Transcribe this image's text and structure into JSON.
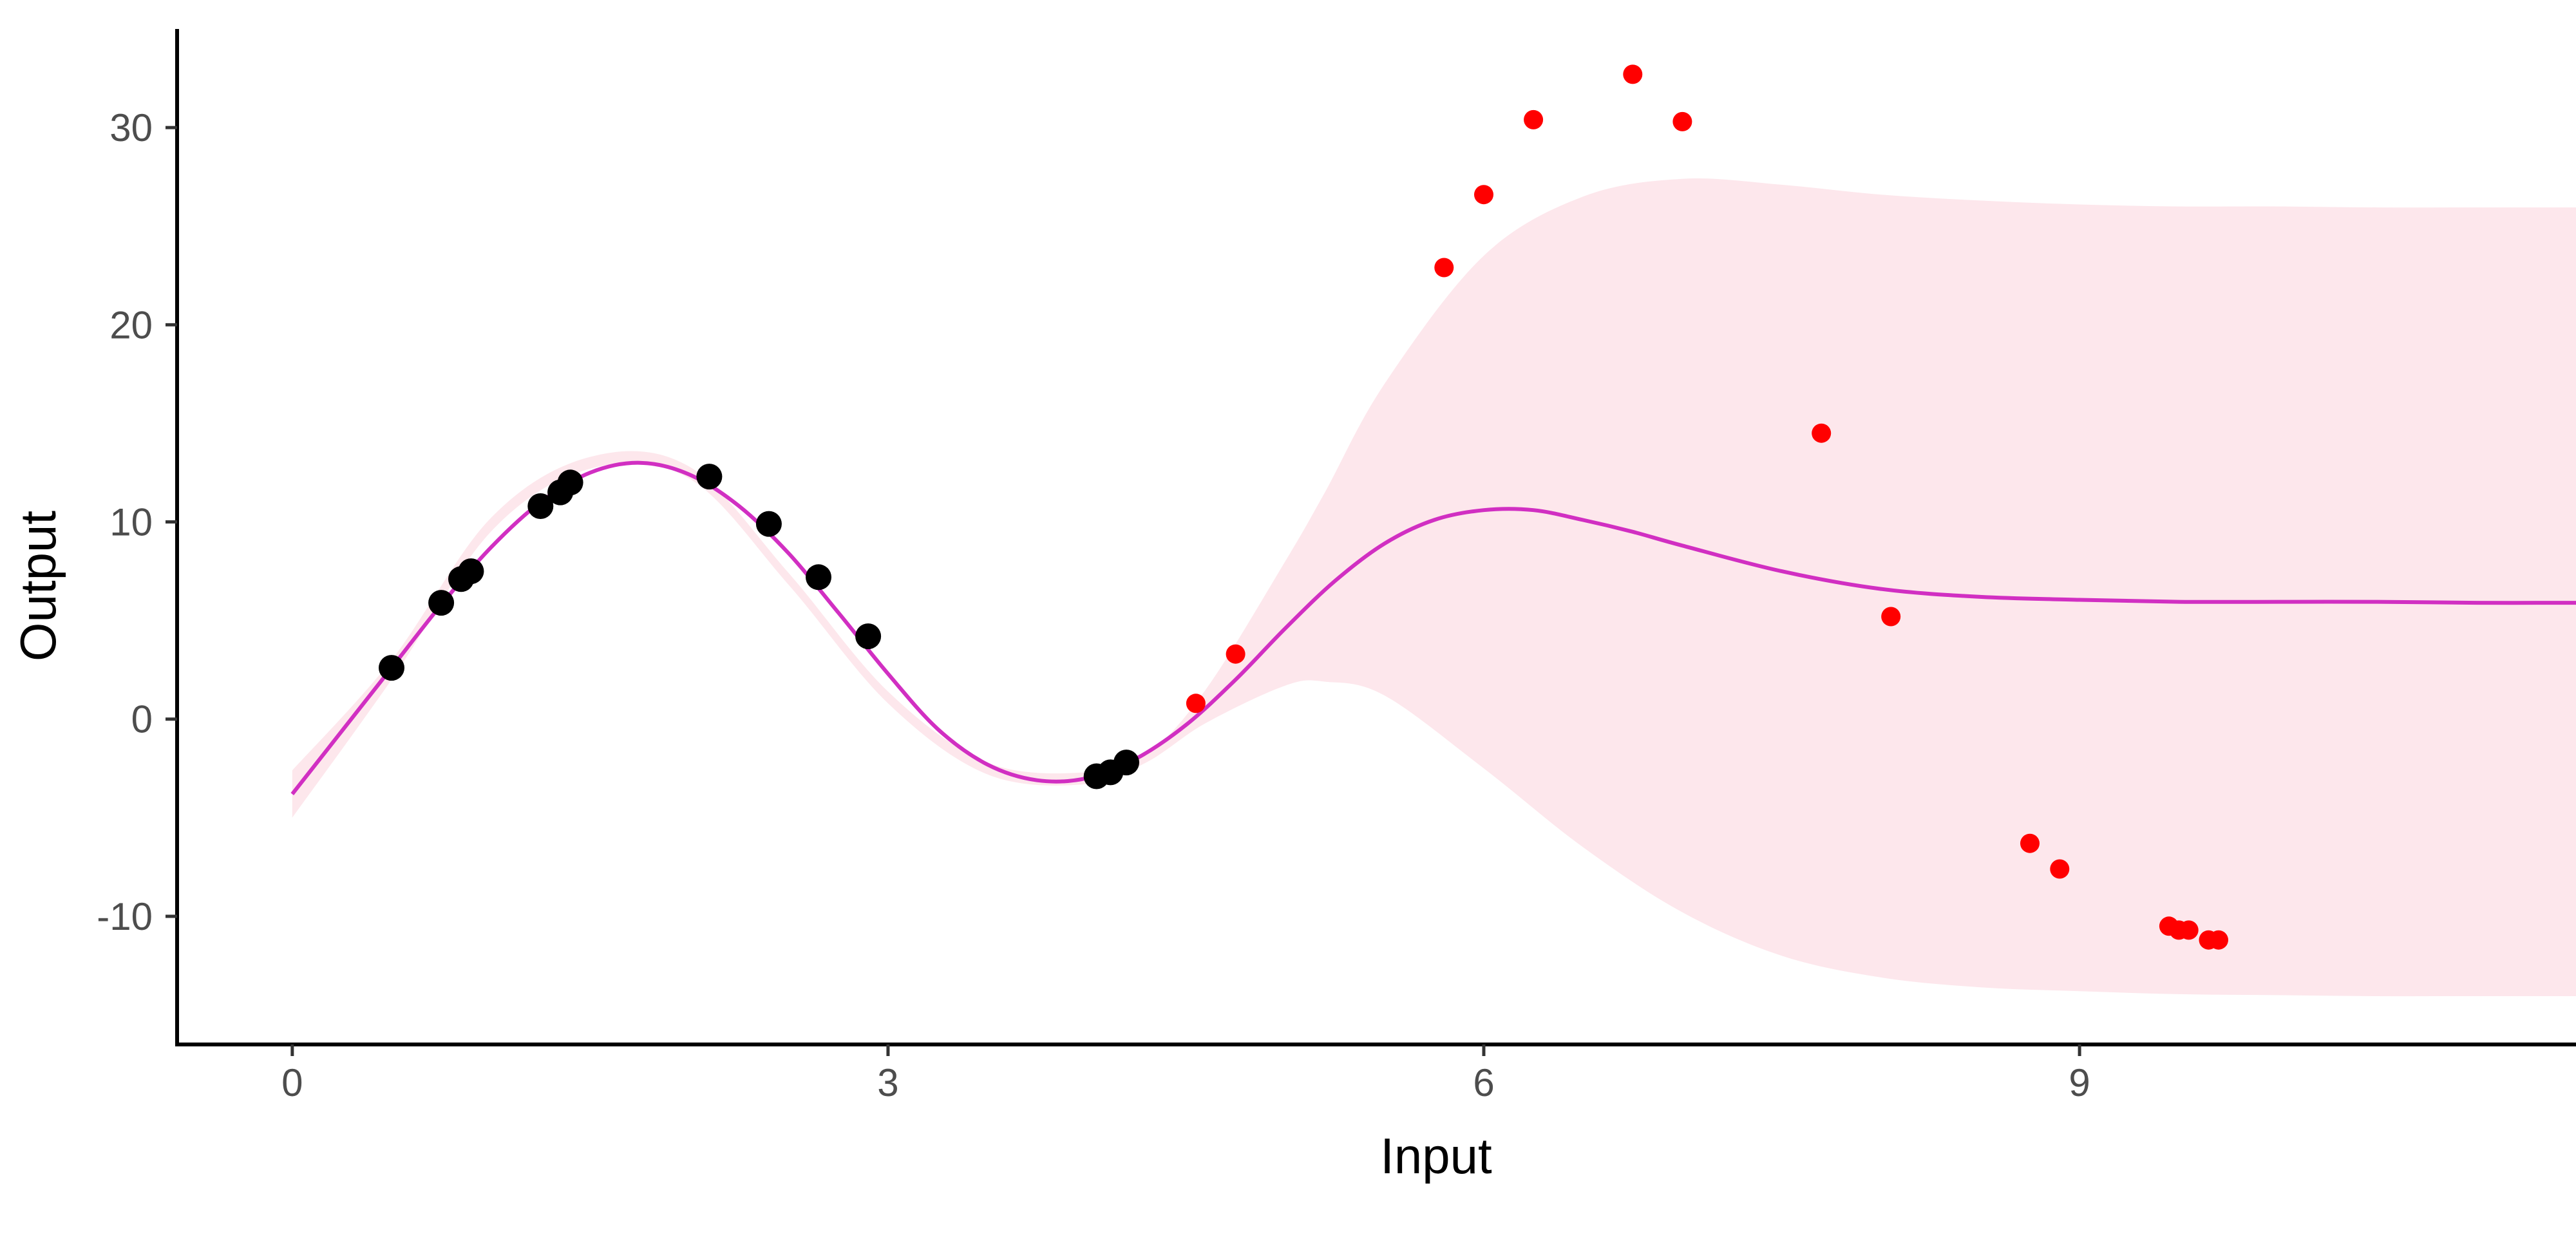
{
  "chart_data": {
    "type": "scatter",
    "title": "",
    "xlabel": "Input",
    "ylabel": "Output",
    "xlim": [
      -0.58,
      11.5
    ],
    "ylim": [
      -16.5,
      35
    ],
    "x_ticks": [
      0,
      3,
      6,
      9
    ],
    "x_tick_labels": [
      "0",
      "3",
      "6",
      "9"
    ],
    "y_ticks": [
      -10,
      0,
      10,
      20,
      30
    ],
    "y_tick_labels": [
      "-10",
      "0",
      "10",
      "20",
      "30"
    ],
    "grid": false,
    "legend": "none",
    "colors": {
      "fit_line": "#d12fc2",
      "band": "#fde7ec",
      "training_points": "#000000",
      "test_points": "#ff0000",
      "axis": "#000000"
    },
    "series": [
      {
        "kind": "band",
        "x": [
          0,
          0.5,
          1,
          1.5,
          2,
          2.5,
          3,
          3.5,
          4,
          4.3,
          4.6,
          5,
          5.2,
          5.5,
          6,
          6.5,
          7,
          7.5,
          8,
          8.5,
          9,
          9.5,
          10,
          10.5,
          11,
          11.5
        ],
        "lower": [
          -5,
          2,
          9.5,
          12.7,
          12.2,
          6.8,
          0.8,
          -2.8,
          -3.3,
          -2.2,
          -0.2,
          1.7,
          1.9,
          1.2,
          -2.5,
          -6.5,
          -9.8,
          -12,
          -13.1,
          -13.6,
          -13.8,
          -13.95,
          -14,
          -14.05,
          -14.05,
          -14.05
        ],
        "upper": [
          -2.6,
          3,
          10.2,
          13.3,
          12.8,
          7.4,
          1.4,
          -2.2,
          -2.7,
          -1.8,
          1.5,
          8,
          11.5,
          17,
          23.5,
          26.5,
          27.4,
          27.1,
          26.6,
          26.3,
          26.1,
          26.0,
          26.0,
          25.95,
          25.95,
          25.95
        ]
      },
      {
        "kind": "line",
        "x": [
          0,
          0.25,
          0.5,
          0.75,
          1,
          1.25,
          1.5,
          1.75,
          2,
          2.25,
          2.5,
          2.75,
          3,
          3.25,
          3.5,
          3.75,
          4,
          4.25,
          4.5,
          4.75,
          5,
          5.25,
          5.5,
          5.75,
          6,
          6.25,
          6.5,
          6.75,
          7,
          7.5,
          8,
          8.5,
          9,
          9.5,
          10,
          10.5,
          11,
          11.5
        ],
        "y": [
          -3.8,
          -0.6,
          2.6,
          5.8,
          8.7,
          11.0,
          12.5,
          13.0,
          12.4,
          10.8,
          8.4,
          5.4,
          2.3,
          -0.5,
          -2.3,
          -3.1,
          -3.0,
          -2.0,
          -0.3,
          2.0,
          4.6,
          7.0,
          8.9,
          10.1,
          10.6,
          10.6,
          10.1,
          9.5,
          8.8,
          7.5,
          6.6,
          6.2,
          6.05,
          5.95,
          5.95,
          5.95,
          5.9,
          5.9
        ]
      },
      {
        "kind": "points",
        "name": "",
        "x": [
          0.5,
          0.75,
          0.85,
          0.9,
          1.25,
          1.35,
          1.4,
          2.1,
          2.4,
          2.65,
          2.9,
          4.05,
          4.12,
          4.2
        ],
        "y": [
          2.6,
          5.9,
          7.1,
          7.5,
          10.8,
          11.5,
          12.0,
          12.3,
          9.9,
          7.2,
          4.2,
          -2.9,
          -2.7,
          -2.2
        ]
      },
      {
        "kind": "points",
        "name": "",
        "x": [
          4.55,
          4.75,
          5.8,
          6.0,
          6.25,
          6.75,
          7.0,
          7.7,
          8.05,
          8.75,
          8.9,
          9.45,
          9.5,
          9.55,
          9.65,
          9.7
        ],
        "y": [
          0.8,
          3.3,
          22.9,
          26.6,
          30.4,
          32.7,
          30.3,
          14.5,
          5.2,
          -6.3,
          -7.6,
          -10.5,
          -10.7,
          -10.7,
          -11.2,
          -11.2
        ]
      }
    ]
  }
}
